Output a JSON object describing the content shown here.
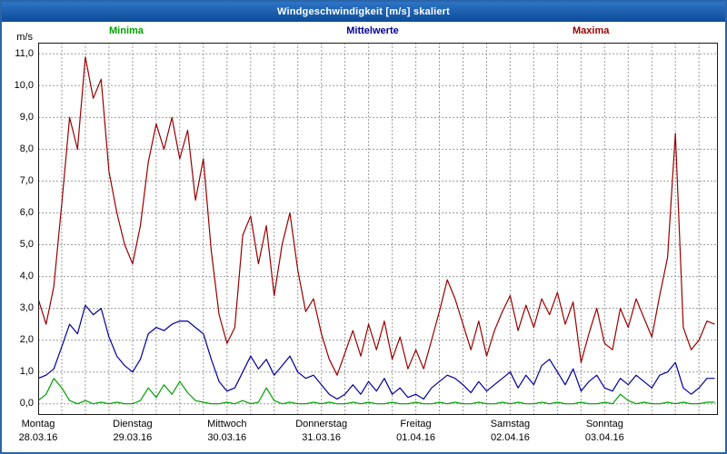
{
  "header": {
    "title": "Windgeschwindigkeit [m/s] skaliert"
  },
  "legend": {
    "minima": {
      "label": "Minima",
      "color": "#00a000"
    },
    "mittelwerte": {
      "label": "Mittelwerte",
      "color": "#000099"
    },
    "maxima": {
      "label": "Maxima",
      "color": "#990000"
    }
  },
  "y_axis": {
    "unit": "m/s",
    "ticks": [
      "11,0",
      "10,0",
      "9,0",
      "8,0",
      "7,0",
      "6,0",
      "5,0",
      "4,0",
      "3,0",
      "2,0",
      "1,0",
      "0,0"
    ]
  },
  "x_axis": {
    "days": [
      {
        "name": "Montag",
        "date": "28.03.16"
      },
      {
        "name": "Dienstag",
        "date": "29.03.16"
      },
      {
        "name": "Mittwoch",
        "date": "30.03.16"
      },
      {
        "name": "Donnerstag",
        "date": "31.03.16"
      },
      {
        "name": "Freitag",
        "date": "01.04.16"
      },
      {
        "name": "Samstag",
        "date": "02.04.16"
      },
      {
        "name": "Sonntag",
        "date": "03.04.16"
      }
    ]
  },
  "chart_data": {
    "type": "line",
    "title": "Windgeschwindigkeit [m/s] skaliert",
    "xlabel": "",
    "ylabel": "m/s",
    "ylim": [
      0,
      11
    ],
    "grid": true,
    "legend_position": "top",
    "x_hours_step": 2,
    "x_total_hours": 172.8,
    "grid_color": "#9b9b9b",
    "border_color": "#1a1a1a",
    "series": [
      {
        "name": "Maxima",
        "color": "#990000",
        "values": [
          3.3,
          2.5,
          3.7,
          6.3,
          9.0,
          8.0,
          10.9,
          9.6,
          10.2,
          7.3,
          6.0,
          5.0,
          4.4,
          5.6,
          7.6,
          8.8,
          8.0,
          9.0,
          7.7,
          8.6,
          6.4,
          7.7,
          4.8,
          2.8,
          1.9,
          2.4,
          5.3,
          5.9,
          4.4,
          5.6,
          3.4,
          5.0,
          6.0,
          4.2,
          2.9,
          3.3,
          2.2,
          1.4,
          0.9,
          1.6,
          2.3,
          1.5,
          2.5,
          1.7,
          2.6,
          1.4,
          2.1,
          1.1,
          1.7,
          1.1,
          2.0,
          2.9,
          3.9,
          3.3,
          2.5,
          1.7,
          2.6,
          1.5,
          2.3,
          2.9,
          3.4,
          2.3,
          3.1,
          2.4,
          3.3,
          2.8,
          3.5,
          2.5,
          3.2,
          1.3,
          2.2,
          3.0,
          1.9,
          1.7,
          3.0,
          2.4,
          3.3,
          2.7,
          2.1,
          3.4,
          4.6,
          8.5,
          2.4,
          1.7,
          2.0,
          2.6,
          2.5
        ]
      },
      {
        "name": "Mittelwerte",
        "color": "#000099",
        "values": [
          0.8,
          0.9,
          1.1,
          1.8,
          2.5,
          2.2,
          3.1,
          2.8,
          3.0,
          2.1,
          1.5,
          1.2,
          1.0,
          1.4,
          2.2,
          2.4,
          2.3,
          2.5,
          2.6,
          2.6,
          2.4,
          2.2,
          1.4,
          0.7,
          0.4,
          0.5,
          1.0,
          1.5,
          1.1,
          1.4,
          0.9,
          1.2,
          1.5,
          1.0,
          0.8,
          0.9,
          0.6,
          0.3,
          0.15,
          0.3,
          0.6,
          0.3,
          0.7,
          0.4,
          0.8,
          0.3,
          0.5,
          0.2,
          0.3,
          0.15,
          0.5,
          0.7,
          0.9,
          0.8,
          0.6,
          0.35,
          0.7,
          0.4,
          0.6,
          0.8,
          1.0,
          0.5,
          0.9,
          0.6,
          1.2,
          1.4,
          1.0,
          0.6,
          1.1,
          0.4,
          0.7,
          0.9,
          0.5,
          0.4,
          0.8,
          0.6,
          0.9,
          0.7,
          0.5,
          0.9,
          1.0,
          1.3,
          0.5,
          0.3,
          0.5,
          0.8,
          0.8
        ]
      },
      {
        "name": "Minima",
        "color": "#00a000",
        "values": [
          0.1,
          0.3,
          0.8,
          0.5,
          0.1,
          0.0,
          0.1,
          0.0,
          0.05,
          0.0,
          0.05,
          0.0,
          0.0,
          0.1,
          0.5,
          0.2,
          0.6,
          0.3,
          0.7,
          0.35,
          0.1,
          0.05,
          0.0,
          0.0,
          0.05,
          0.0,
          0.1,
          0.0,
          0.05,
          0.5,
          0.1,
          0.0,
          0.05,
          0.0,
          0.0,
          0.05,
          0.0,
          0.05,
          0.0,
          0.0,
          0.05,
          0.0,
          0.05,
          0.0,
          0.0,
          0.05,
          0.0,
          0.0,
          0.05,
          0.0,
          0.0,
          0.05,
          0.0,
          0.05,
          0.0,
          0.0,
          0.05,
          0.0,
          0.0,
          0.05,
          0.0,
          0.05,
          0.0,
          0.0,
          0.05,
          0.0,
          0.05,
          0.0,
          0.0,
          0.05,
          0.0,
          0.0,
          0.05,
          0.0,
          0.3,
          0.1,
          0.0,
          0.05,
          0.0,
          0.0,
          0.05,
          0.0,
          0.05,
          0.0,
          0.0,
          0.05,
          0.05
        ]
      }
    ]
  }
}
